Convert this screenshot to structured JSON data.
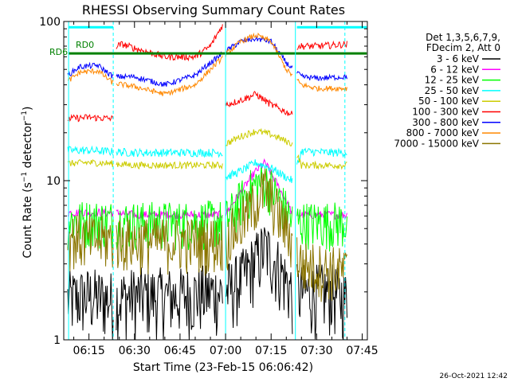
{
  "chart_data": {
    "type": "line",
    "title": "RHESSI Observing Summary Count Rates",
    "xlabel": "Start Time (23-Feb-15 06:06:42)",
    "ylabel": "Count Rate (s⁻¹ detector⁻¹)",
    "ylabel_main": "Count Rate (s",
    "ylabel_sup": "−1",
    "ylabel_rest": " detector",
    "ylabel_sup2": "−1",
    "ylabel_close": ")",
    "y_scale": "log",
    "ylim": [
      1,
      100
    ],
    "xlim": [
      "06:06:42",
      "07:46:40"
    ],
    "x_ticks": [
      "06:15",
      "06:30",
      "06:45",
      "07:00",
      "07:15",
      "07:30",
      "07:45"
    ],
    "x_tick_minutes": [
      375,
      390,
      405,
      420,
      435,
      450,
      465
    ],
    "xlim_minutes": [
      366.7,
      466.7
    ],
    "y_ticks": [
      "1",
      "10",
      "100"
    ],
    "y_tick_values": [
      1,
      10,
      100
    ],
    "grid": false,
    "legend_position": "right",
    "legend_header": [
      "Det 1,3,5,6,7,9,",
      "FDecim 2, Att 0"
    ],
    "date_stamp": "26-Oct-2021 12:42",
    "annotations": [
      "RD0",
      "RD6"
    ],
    "vertical_lines": [
      {
        "minute": 368.3,
        "style": "solid"
      },
      {
        "minute": 383.0,
        "style": "dashed"
      },
      {
        "minute": 420.0,
        "style": "solid"
      },
      {
        "minute": 443.0,
        "style": "solid"
      },
      {
        "minute": 459.3,
        "style": "dashed"
      }
    ],
    "gaps": [
      [
        383.0,
        384.0
      ],
      [
        419.0,
        420.0
      ],
      [
        442.0,
        443.5
      ]
    ],
    "series": [
      {
        "name": "3 - 6 keV",
        "color": "#000000",
        "noise": 0.5,
        "x": [
          368,
          375,
          383,
          390,
          405,
          415,
          420,
          425,
          430,
          433,
          437,
          442,
          445,
          455,
          460
        ],
        "y": [
          1.8,
          1.9,
          1.8,
          1.9,
          1.9,
          2.0,
          2.0,
          2.4,
          3.2,
          3.8,
          3.0,
          2.0,
          2.0,
          2.0,
          1.8
        ]
      },
      {
        "name": "6 - 12 keV",
        "color": "#ff00ff",
        "noise": 0.06,
        "x": [
          368,
          383,
          390,
          405,
          419,
          420,
          425,
          430,
          433,
          437,
          442,
          445,
          460
        ],
        "y": [
          6.3,
          6.3,
          6.1,
          6.1,
          6.1,
          6.2,
          8.5,
          11.5,
          13.0,
          9.5,
          6.2,
          6.1,
          6.1
        ]
      },
      {
        "name": "12 - 25 keV",
        "color": "#00ff00",
        "noise": 0.35,
        "x": [
          368,
          383,
          390,
          405,
          419,
          420,
          425,
          430,
          433,
          437,
          442,
          445,
          460
        ],
        "y": [
          5.6,
          5.6,
          5.5,
          5.5,
          5.6,
          5.6,
          7.5,
          9.5,
          10.0,
          8.0,
          5.6,
          5.5,
          5.5
        ]
      },
      {
        "name": "25 - 50 keV",
        "color": "#00ffff",
        "noise": 0.06,
        "x": [
          368,
          375,
          383,
          390,
          400,
          410,
          419,
          420,
          425,
          430,
          435,
          440,
          442,
          445,
          455,
          460
        ],
        "y": [
          15.5,
          15.5,
          15.2,
          15.0,
          15.0,
          15.0,
          15.0,
          10.5,
          11.5,
          13.0,
          12.0,
          10.5,
          10.0,
          15.3,
          15.0,
          15.0
        ]
      },
      {
        "name": "50 - 100 keV",
        "color": "#cccc00",
        "noise": 0.05,
        "x": [
          368,
          375,
          383,
          390,
          405,
          419,
          420,
          425,
          430,
          435,
          442,
          445,
          460
        ],
        "y": [
          12.8,
          13.0,
          12.8,
          12.5,
          12.5,
          12.5,
          17.0,
          19.0,
          20.5,
          19.5,
          17.0,
          12.5,
          12.5
        ]
      },
      {
        "name": "100 - 300 keV",
        "color": "#ff0000",
        "noise": 0.05,
        "x": [
          368,
          375,
          383,
          384,
          386,
          390,
          400,
          410,
          415,
          419,
          420,
          425,
          430,
          435,
          440,
          442,
          443,
          450,
          460
        ],
        "y": [
          24.5,
          25.0,
          24.5,
          70.0,
          72.0,
          68.0,
          60.0,
          60.0,
          70.0,
          95.0,
          30.0,
          32.0,
          35.0,
          30.0,
          27.0,
          26.0,
          70.0,
          70.0,
          72.0
        ]
      },
      {
        "name": "300 - 800 keV",
        "color": "#0000ff",
        "noise": 0.04,
        "x": [
          368,
          372,
          378,
          383,
          390,
          400,
          410,
          415,
          420,
          425,
          430,
          435,
          440,
          445,
          450,
          460
        ],
        "y": [
          46.0,
          52.0,
          53.0,
          45.0,
          45.0,
          40.0,
          46.0,
          55.0,
          65.0,
          75.0,
          78.0,
          75.0,
          55.0,
          45.0,
          44.0,
          45.0
        ]
      },
      {
        "name": "800 - 7000 keV",
        "color": "#ff8800",
        "noise": 0.04,
        "x": [
          368,
          372,
          378,
          383,
          390,
          400,
          410,
          415,
          420,
          425,
          430,
          435,
          440,
          445,
          450,
          460
        ],
        "y": [
          42.0,
          48.0,
          49.0,
          41.0,
          39.0,
          35.0,
          40.0,
          50.0,
          62.0,
          75.0,
          82.0,
          75.0,
          50.0,
          40.0,
          38.0,
          38.0
        ]
      },
      {
        "name": "7000 - 15000 keV",
        "color": "#8b7500",
        "noise": 0.4,
        "x": [
          368,
          375,
          383,
          390,
          405,
          419,
          420,
          425,
          430,
          433,
          437,
          442,
          445,
          460
        ],
        "y": [
          4.5,
          4.3,
          4.3,
          4.2,
          4.2,
          4.2,
          4.3,
          5.5,
          7.5,
          9.0,
          6.5,
          4.2,
          3.0,
          2.7
        ]
      }
    ],
    "level_lines": [
      {
        "name": "RD0-level",
        "color": "#00ffff",
        "y": 92,
        "segments": [
          [
            368.3,
            383.0
          ],
          [
            443.5,
            466.5
          ]
        ]
      },
      {
        "name": "RD6-level",
        "color": "#008000",
        "y": 63,
        "segments": [
          [
            368.3,
            466.5
          ]
        ]
      }
    ]
  }
}
